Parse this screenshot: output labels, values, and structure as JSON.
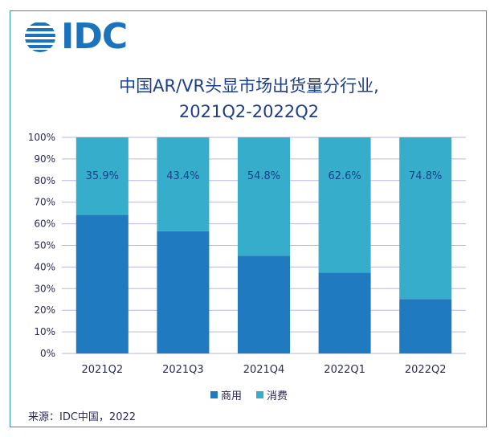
{
  "logo": {
    "text": "IDC",
    "icon": "idc-globe-icon",
    "color": "#1b73bd"
  },
  "chart_data": {
    "type": "bar",
    "stacked": true,
    "percent": true,
    "title": "中国AR/VR头显市场出货量分行业,",
    "subtitle": "2021Q2-2022Q2",
    "xlabel": "",
    "ylabel": "",
    "categories": [
      "2021Q2",
      "2021Q3",
      "2021Q4",
      "2022Q1",
      "2022Q2"
    ],
    "ylim": [
      0,
      100
    ],
    "yticks": [
      "0%",
      "10%",
      "20%",
      "30%",
      "40%",
      "50%",
      "60%",
      "70%",
      "80%",
      "90%",
      "100%"
    ],
    "grid": true,
    "legend_position": "bottom",
    "series": [
      {
        "name": "商用",
        "values": [
          64.1,
          56.6,
          45.2,
          37.4,
          25.2
        ],
        "color": "#1f7ac0"
      },
      {
        "name": "消费",
        "values": [
          35.9,
          43.4,
          54.8,
          62.6,
          74.8
        ],
        "color": "#36aecb",
        "labels": [
          "35.9%",
          "43.4%",
          "54.8%",
          "62.6%",
          "74.8%"
        ]
      }
    ]
  },
  "source": "来源：IDC中国，2022"
}
